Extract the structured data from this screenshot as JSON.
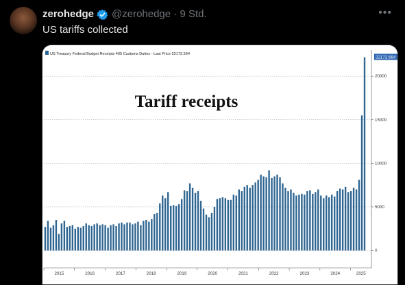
{
  "post": {
    "display_name": "zerohedge",
    "handle": "@zerohedge",
    "separator": "·",
    "time": "9 Std.",
    "text": "US tariffs collected",
    "more_icon": "more-icon",
    "verified_icon": "verified-badge-icon"
  },
  "chart_data": {
    "type": "bar",
    "legend": "US Treasury Federal Budget Receipts 405 Customs Duties - Last Price 22172.564",
    "annotation": "Tariff receipts",
    "last_price_label": "22172.564",
    "y_ticks": [
      0,
      5000,
      10000,
      15000,
      20000
    ],
    "x_ticks": [
      "2015",
      "2016",
      "2017",
      "2018",
      "2019",
      "2020",
      "2021",
      "2022",
      "2023",
      "2024",
      "2025"
    ],
    "ylim": [
      -2000,
      23000
    ],
    "colors": {
      "bar": "#2e6591",
      "label_box": "#2f67b4"
    },
    "values": [
      2700,
      3400,
      2600,
      2900,
      3500,
      1900,
      3100,
      3400,
      2700,
      2800,
      2900,
      2500,
      2700,
      2600,
      2800,
      3100,
      2900,
      2800,
      3000,
      3100,
      2900,
      3000,
      2900,
      2600,
      2900,
      3000,
      2800,
      3100,
      3200,
      3000,
      3200,
      3200,
      3000,
      3100,
      3300,
      2900,
      3400,
      3500,
      3300,
      3600,
      4200,
      4300,
      5400,
      6300,
      6000,
      6700,
      5100,
      5200,
      5100,
      5300,
      5900,
      6900,
      6800,
      7700,
      7200,
      6600,
      6800,
      5700,
      4800,
      4100,
      3800,
      4300,
      5000,
      5900,
      6000,
      6100,
      6000,
      5800,
      5800,
      6400,
      6300,
      7000,
      6800,
      7300,
      7500,
      7200,
      7500,
      7800,
      8100,
      8700,
      8500,
      8400,
      9200,
      8300,
      8500,
      8700,
      8400,
      7700,
      7200,
      6800,
      7000,
      6600,
      6300,
      6400,
      6500,
      6400,
      6800,
      6900,
      6500,
      6700,
      7000,
      6300,
      6000,
      6300,
      6100,
      6400,
      6200,
      6800,
      7100,
      7000,
      7300,
      6700,
      6800,
      7200,
      7000,
      8100,
      15500,
      22172.564
    ]
  }
}
